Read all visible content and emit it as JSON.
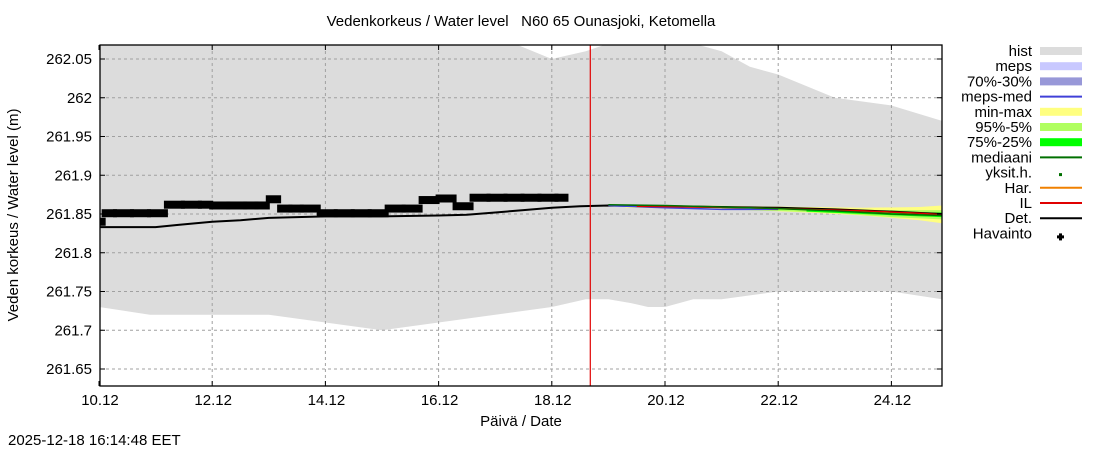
{
  "chart_data": {
    "type": "line",
    "title": "Vedenkorkeus / Water level   N60 65 Ounasjoki, Ketomella",
    "xlabel": "Päivä / Date",
    "ylabel": "Veden korkeus / Water level (m)",
    "xlim": [
      0,
      14.9
    ],
    "ylim": [
      261.627,
      262.072
    ],
    "grid": true,
    "legend_position": "right",
    "x_unit": "days since 10.12",
    "xticks": [
      {
        "x": 0,
        "label": "10.12"
      },
      {
        "x": 2,
        "label": "12.12"
      },
      {
        "x": 4,
        "label": "14.12"
      },
      {
        "x": 6,
        "label": "16.12"
      },
      {
        "x": 8,
        "label": "18.12"
      },
      {
        "x": 10,
        "label": "20.12"
      },
      {
        "x": 12,
        "label": "22.12"
      },
      {
        "x": 14,
        "label": "24.12"
      }
    ],
    "yticks": [
      {
        "y": 262.05,
        "label": "262.05"
      },
      {
        "y": 262.0,
        "label": "262"
      },
      {
        "y": 261.95,
        "label": "261.95"
      },
      {
        "y": 261.9,
        "label": "261.9"
      },
      {
        "y": 261.85,
        "label": "261.85"
      },
      {
        "y": 261.8,
        "label": "261.8"
      },
      {
        "y": 261.75,
        "label": "261.75"
      },
      {
        "y": 261.7,
        "label": "261.7"
      },
      {
        "y": 261.65,
        "label": "261.65"
      }
    ],
    "now_x": 8.68,
    "hist": {
      "x": [
        0,
        0.9,
        2.0,
        3.0,
        4.0,
        5.0,
        6.0,
        7.0,
        8.0,
        8.6,
        9.0,
        9.4,
        9.7,
        10.0,
        10.5,
        11.0,
        11.5,
        12.0,
        13.0,
        14.0,
        14.9
      ],
      "upper": [
        262.08,
        262.08,
        262.08,
        262.08,
        262.08,
        262.08,
        262.08,
        262.08,
        262.05,
        262.06,
        262.07,
        262.08,
        262.08,
        262.08,
        262.07,
        262.06,
        262.04,
        262.03,
        262.0,
        261.99,
        261.97
      ],
      "lower": [
        261.73,
        261.72,
        261.72,
        261.72,
        261.71,
        261.7,
        261.71,
        261.72,
        261.73,
        261.74,
        261.74,
        261.735,
        261.73,
        261.73,
        261.74,
        261.74,
        261.745,
        261.75,
        261.75,
        261.75,
        261.74
      ]
    },
    "series": [
      {
        "name": "Havainto",
        "type": "points",
        "x": [
          0,
          0.1,
          0.3,
          0.6,
          0.9,
          1.2,
          1.5,
          1.8,
          2.0,
          2.3,
          2.6,
          2.8,
          3.0,
          3.2,
          3.4,
          3.6,
          3.9,
          4.2,
          4.5,
          4.8,
          5.1,
          5.4,
          5.7,
          6.0,
          6.3,
          6.6,
          6.9,
          7.2,
          7.5,
          7.8,
          8.1
        ],
        "y": [
          261.84,
          261.851,
          261.851,
          261.851,
          261.851,
          261.862,
          261.862,
          261.862,
          261.861,
          261.861,
          261.861,
          261.861,
          261.869,
          261.857,
          261.857,
          261.857,
          261.851,
          261.851,
          261.851,
          261.851,
          261.857,
          261.857,
          261.868,
          261.87,
          261.86,
          261.871,
          261.871,
          261.871,
          261.871,
          261.871,
          261.871
        ]
      },
      {
        "name": "Det.",
        "type": "line",
        "color": "#000000",
        "x": [
          0,
          1.0,
          1.4,
          2.0,
          2.5,
          3.0,
          4.0,
          5.0,
          6.0,
          6.5,
          7.0,
          7.5,
          8.0,
          8.5,
          9.0,
          10.0,
          11.0,
          12.0,
          13.0,
          14.0,
          14.9
        ],
        "y": [
          261.833,
          261.833,
          261.836,
          261.84,
          261.842,
          261.845,
          261.847,
          261.847,
          261.848,
          261.849,
          261.852,
          261.855,
          261.858,
          261.86,
          261.861,
          261.86,
          261.859,
          261.858,
          261.856,
          261.853,
          261.85
        ]
      },
      {
        "name": "meps-med",
        "type": "line",
        "color": "#4040e0",
        "x": [
          9.0,
          10.0,
          11.0,
          12.0
        ],
        "y": [
          261.861,
          261.858,
          261.856,
          261.856
        ]
      },
      {
        "name": "IL",
        "type": "line",
        "color": "#e00000",
        "x": [
          9.5,
          10.5,
          11.5,
          12.5,
          13.5,
          14.5,
          14.9
        ],
        "y": [
          261.86,
          261.859,
          261.858,
          261.856,
          261.854,
          261.851,
          261.849
        ]
      },
      {
        "name": "mediaani",
        "type": "line",
        "color": "#007000",
        "x": [
          9.0,
          10.0,
          11.0,
          12.0,
          13.0,
          14.0,
          14.9
        ],
        "y": [
          261.862,
          261.861,
          261.859,
          261.857,
          261.854,
          261.85,
          261.848
        ]
      }
    ],
    "bands": [
      {
        "name": "min-max",
        "color": "#ffff80",
        "x": [
          9.3,
          10.5,
          11.5,
          12.5,
          13.5,
          14.5,
          14.9
        ],
        "upper": [
          261.861,
          261.861,
          261.86,
          261.859,
          261.858,
          261.859,
          261.861
        ],
        "lower": [
          261.858,
          261.857,
          261.855,
          261.852,
          261.848,
          261.842,
          261.838
        ]
      },
      {
        "name": "95%-5%",
        "color": "#b0ff60",
        "x": [
          11.0,
          12.0,
          13.0,
          14.0,
          14.9
        ],
        "upper": [
          261.859,
          261.858,
          261.856,
          261.855,
          261.855
        ],
        "lower": [
          261.856,
          261.854,
          261.851,
          261.846,
          261.843
        ]
      },
      {
        "name": "75%-25%",
        "color": "#00ff00",
        "x": [
          12.5,
          13.5,
          14.5,
          14.9
        ],
        "upper": [
          261.855,
          261.853,
          261.852,
          261.852
        ],
        "lower": [
          261.853,
          261.85,
          261.847,
          261.846
        ]
      }
    ],
    "legend": [
      {
        "label": "hist",
        "kind": "box",
        "color": "#dcdcdc"
      },
      {
        "label": "meps",
        "kind": "box",
        "color": "#c8c8ff"
      },
      {
        "label": "70%-30%",
        "kind": "box",
        "color": "#9898d8"
      },
      {
        "label": "meps-med",
        "kind": "line",
        "color": "#4040d8"
      },
      {
        "label": "min-max",
        "kind": "box",
        "color": "#ffff80"
      },
      {
        "label": "95%-5%",
        "kind": "box",
        "color": "#b0ff60"
      },
      {
        "label": "75%-25%",
        "kind": "box",
        "color": "#00ff00"
      },
      {
        "label": "mediaani",
        "kind": "line",
        "color": "#007000"
      },
      {
        "label": "yksit.h.",
        "kind": "dot",
        "color": "#007000"
      },
      {
        "label": "Har.",
        "kind": "line",
        "color": "#f08000"
      },
      {
        "label": "IL",
        "kind": "line",
        "color": "#e00000"
      },
      {
        "label": "Det.",
        "kind": "line",
        "color": "#000000"
      },
      {
        "label": "Havainto",
        "kind": "plus",
        "color": "#000000"
      }
    ]
  },
  "timestamp": "2025-12-18 16:14:48 EET"
}
